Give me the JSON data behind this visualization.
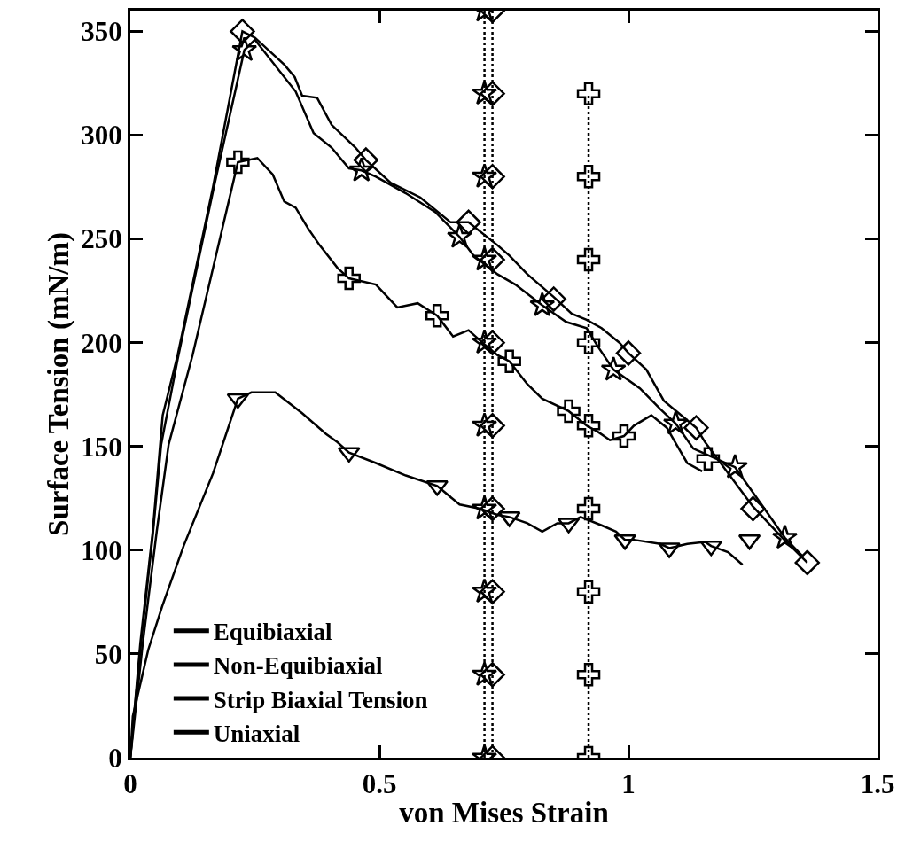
{
  "chart_data": {
    "type": "line",
    "xlabel": "von Mises Strain",
    "ylabel": "Surface Tension (mN/m)",
    "xlim": [
      0,
      1.5
    ],
    "ylim": [
      0,
      360
    ],
    "xticks": [
      0,
      0.5,
      1,
      1.5
    ],
    "yticks": [
      0,
      50,
      100,
      150,
      200,
      250,
      300,
      350
    ],
    "grid": false,
    "legend": "bottom",
    "series": [
      {
        "name": "Equibiaxial",
        "type": "line",
        "color": "#000000",
        "x": [
          0,
          0.02,
          0.045,
          0.065,
          0.095,
          0.166,
          0.225,
          0.25,
          0.309,
          0.33,
          0.345,
          0.375,
          0.404,
          0.452,
          0.473,
          0.523,
          0.582,
          0.643,
          0.679,
          0.737,
          0.761,
          0.797,
          0.85,
          0.886,
          0.916,
          0.946,
          0.982,
          1.0,
          1.036,
          1.071,
          1.136,
          1.154,
          1.25,
          1.309,
          1.359
        ],
        "values": [
          0,
          55,
          109,
          165,
          194,
          275,
          350,
          347,
          334,
          328,
          319,
          318,
          305,
          294,
          288,
          277,
          270,
          258,
          258,
          247,
          242,
          233,
          222,
          214,
          211,
          207,
          200,
          195,
          187,
          172,
          159,
          152,
          121,
          106,
          94
        ]
      },
      {
        "type": "scatter",
        "color": "#000000",
        "marker": "diamond",
        "x": [
          0.225,
          0.473,
          0.679,
          0.85,
          1.0,
          1.136,
          1.25,
          1.359
        ],
        "values": [
          350,
          288,
          258,
          221,
          195,
          159,
          120,
          94
        ]
      },
      {
        "name": "Non-Equibiaxial",
        "type": "line",
        "color": "#000000",
        "x": [
          0,
          0.02,
          0.045,
          0.062,
          0.095,
          0.166,
          0.229,
          0.25,
          0.332,
          0.368,
          0.404,
          0.439,
          0.464,
          0.493,
          0.553,
          0.612,
          0.661,
          0.689,
          0.737,
          0.773,
          0.827,
          0.875,
          0.916,
          0.939,
          0.97,
          1.023,
          1.064,
          1.095,
          1.13,
          1.214,
          1.273,
          1.314,
          1.35
        ],
        "values": [
          0,
          52,
          107,
          151,
          192,
          273,
          341,
          346,
          321,
          301,
          294,
          284,
          283,
          280,
          272,
          263,
          251,
          242,
          233,
          228,
          218,
          210,
          207,
          198,
          187,
          178,
          168,
          161,
          149,
          140,
          120,
          106,
          97
        ]
      },
      {
        "type": "scatter",
        "color": "#000000",
        "marker": "star",
        "x": [
          0.229,
          0.464,
          0.661,
          0.827,
          0.97,
          1.095,
          1.214,
          1.314
        ],
        "values": [
          341,
          283,
          251,
          218,
          187,
          161,
          140,
          106
        ]
      },
      {
        "name": "Strip Biaxial Tension",
        "type": "line",
        "color": "#000000",
        "x": [
          0,
          0.025,
          0.053,
          0.077,
          0.125,
          0.216,
          0.255,
          0.286,
          0.309,
          0.332,
          0.357,
          0.38,
          0.416,
          0.439,
          0.493,
          0.536,
          0.577,
          0.616,
          0.648,
          0.679,
          0.707,
          0.737,
          0.761,
          0.797,
          0.827,
          0.88,
          0.916,
          0.939,
          0.963,
          0.991,
          1.011,
          1.046,
          1.077,
          1.118,
          1.148
        ],
        "values": [
          0,
          55,
          109,
          151,
          194,
          287,
          289,
          281,
          268,
          265,
          255,
          247,
          236,
          231,
          228,
          217,
          219,
          213,
          203,
          206,
          200,
          194,
          191,
          180,
          173,
          167,
          160,
          157,
          153,
          155,
          160,
          165,
          159,
          142,
          138
        ]
      },
      {
        "type": "scatter",
        "color": "#000000",
        "marker": "cross",
        "x": [
          0.216,
          0.439,
          0.616,
          0.761,
          0.88,
          0.991,
          1.16
        ],
        "values": [
          287,
          231,
          213,
          191,
          167,
          155,
          144
        ]
      },
      {
        "name": "Uniaxial",
        "type": "line",
        "color": "#000000",
        "x": [
          0,
          0.005,
          0.036,
          0.064,
          0.107,
          0.166,
          0.216,
          0.243,
          0.291,
          0.345,
          0.393,
          0.416,
          0.439,
          0.493,
          0.553,
          0.616,
          0.661,
          0.702,
          0.737,
          0.761,
          0.797,
          0.827,
          0.857,
          0.88,
          0.904,
          0.946,
          0.975,
          0.993,
          1.011,
          1.064,
          1.082,
          1.118,
          1.154,
          1.166,
          1.2,
          1.229
        ],
        "values": [
          0,
          20,
          52,
          73,
          102,
          137,
          173,
          176,
          176,
          166,
          156,
          152,
          147,
          142,
          136,
          131,
          122,
          120,
          117,
          116,
          113,
          109,
          113,
          113,
          116,
          112,
          109,
          105,
          105,
          103,
          101,
          103,
          104,
          102,
          99,
          93
        ]
      },
      {
        "type": "scatter",
        "color": "#000000",
        "marker": "triangle",
        "x": [
          0.216,
          0.439,
          0.616,
          0.761,
          0.88,
          0.993,
          1.082,
          1.166,
          1.243
        ],
        "values": [
          173,
          147,
          131,
          116,
          113,
          105,
          101,
          102,
          105
        ]
      },
      {
        "type": "line",
        "color": "#000000",
        "marker": "star",
        "line_style": "dotted",
        "x": [
          0.711,
          0.711,
          0.711,
          0.711,
          0.711,
          0.711,
          0.711,
          0.711,
          0.711,
          0.711
        ],
        "values": [
          0,
          40,
          80,
          120,
          160,
          200,
          240,
          280,
          320,
          360
        ]
      },
      {
        "type": "line",
        "color": "#000000",
        "marker": "diamond",
        "line_style": "dotted",
        "x": [
          0.727,
          0.727,
          0.727,
          0.727,
          0.727,
          0.727,
          0.727,
          0.727,
          0.727,
          0.727
        ],
        "values": [
          0,
          40,
          80,
          120,
          160,
          200,
          240,
          280,
          320,
          360
        ]
      },
      {
        "type": "line",
        "color": "#000000",
        "marker": "cross",
        "line_style": "dotted",
        "x": [
          0.92,
          0.92,
          0.92,
          0.92,
          0.92,
          0.92,
          0.92,
          0.92,
          0.92
        ],
        "values": [
          0,
          40,
          80,
          120,
          160,
          200,
          240,
          280,
          320
        ]
      }
    ]
  }
}
